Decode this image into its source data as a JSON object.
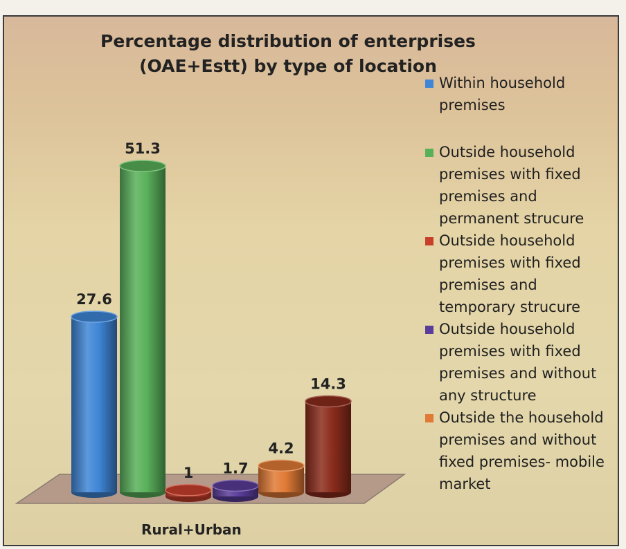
{
  "chart_data": {
    "type": "bar",
    "title": "Percentage distribution of enterprises  (OAE+Estt) by type of location",
    "categories": [
      "Rural+Urban"
    ],
    "series": [
      {
        "name": "Within household premises",
        "values": [
          27.6
        ],
        "color": "#3f86d6"
      },
      {
        "name": "Outside household premises with fixed premises and permanent strucure",
        "values": [
          51.3
        ],
        "color": "#59b05a"
      },
      {
        "name": "Outside household premises with fixed premises  and temporary strucure",
        "values": [
          1
        ],
        "color": "#c8402c"
      },
      {
        "name": "Outside household premises with fixed premises and  without any structure",
        "values": [
          1.7
        ],
        "color": "#5a3c9a"
      },
      {
        "name": "Outside the household premises and without fixed premises- mobile market",
        "values": [
          4.2
        ],
        "color": "#e07a36"
      },
      {
        "name": "",
        "values": [
          14.3
        ],
        "color": "#8a2c1c"
      }
    ],
    "data_labels": [
      "27.6",
      "51.3",
      "1",
      "1.7",
      "4.2",
      "14.3"
    ],
    "legend_position": "right",
    "grid": false
  }
}
